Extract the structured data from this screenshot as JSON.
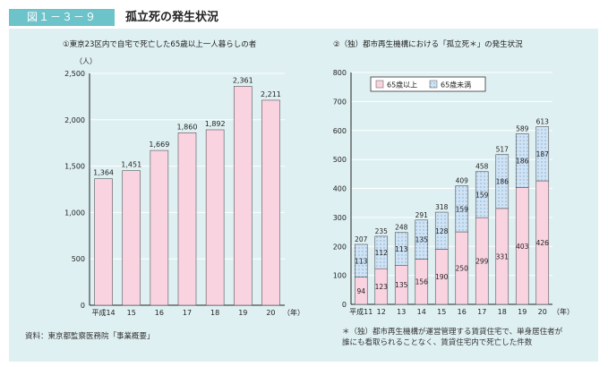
{
  "figure": {
    "badge": "図１－３－９",
    "title": "孤立死の発生状況",
    "source": "資料：東京都監察医務院「事業概要」",
    "note_line1": "＊（独）都市再生機構が運営管理する賃貸住宅で、単身居住者が",
    "note_line2": "誰にも看取られることなく、賃貸住宅内で死亡した件数"
  },
  "colors": {
    "panel_bg": "#dff0f3",
    "header_bg": "#6cc3c9",
    "bar_pink": "#f9d3e0",
    "bar_blue": "#cfe3f4"
  },
  "chart_data": [
    {
      "type": "bar",
      "title": "①東京23区内で自宅で死亡した65歳以上一人暮らしの者",
      "unit_label": "（人）",
      "ylim": [
        0,
        2500
      ],
      "yticks": [
        0,
        500,
        1000,
        1500,
        2000,
        2500
      ],
      "ytick_labels": [
        "0",
        "500",
        "1,000",
        "1,500",
        "2,000",
        "2,500"
      ],
      "categories": [
        "平成14",
        "15",
        "16",
        "17",
        "18",
        "19",
        "20"
      ],
      "year_suffix": "（年）",
      "values": [
        1364,
        1451,
        1669,
        1860,
        1892,
        2361,
        2211
      ],
      "value_labels": [
        "1,364",
        "1,451",
        "1,669",
        "1,860",
        "1,892",
        "2,361",
        "2,211"
      ],
      "grid": true
    },
    {
      "type": "bar",
      "stacked": true,
      "title": "②（独）都市再生機構における「孤立死＊」の発生状況",
      "ylim": [
        0,
        800
      ],
      "yticks": [
        0,
        100,
        200,
        300,
        400,
        500,
        600,
        700,
        800
      ],
      "categories": [
        "平成11",
        "12",
        "13",
        "14",
        "15",
        "16",
        "17",
        "18",
        "19",
        "20"
      ],
      "year_suffix": "（年）",
      "legend_position": "top-left",
      "series": [
        {
          "name": "65歳以上",
          "values": [
            94,
            123,
            135,
            156,
            190,
            250,
            299,
            331,
            403,
            426
          ]
        },
        {
          "name": "65歳未満",
          "values": [
            113,
            112,
            113,
            135,
            128,
            159,
            159,
            186,
            186,
            187
          ]
        }
      ],
      "totals": [
        207,
        235,
        248,
        291,
        318,
        409,
        458,
        517,
        589,
        613
      ],
      "grid": true
    }
  ]
}
